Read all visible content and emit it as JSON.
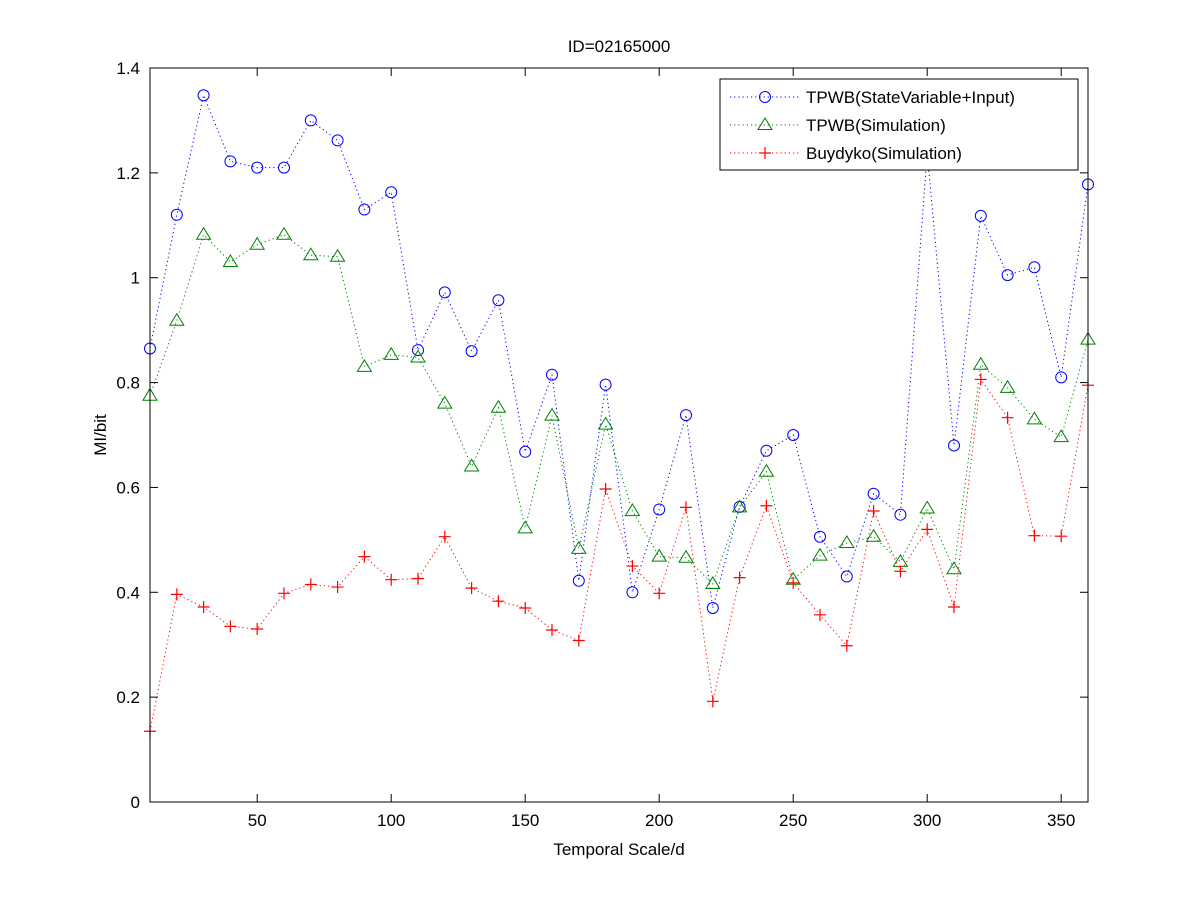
{
  "chart_data": {
    "type": "line",
    "title": "ID=02165000",
    "xlabel": "Temporal Scale/d",
    "ylabel": "MI/bit",
    "xlim": [
      10,
      360
    ],
    "ylim": [
      0,
      1.4
    ],
    "xticks": [
      50,
      100,
      150,
      200,
      250,
      300,
      350
    ],
    "yticks": [
      0,
      0.2,
      0.4,
      0.6,
      0.8,
      1,
      1.2,
      1.4
    ],
    "ytick_labels": [
      "0",
      "0.2",
      "0.4",
      "0.6",
      "0.8",
      "1",
      "1.2",
      "1.4"
    ],
    "grid": false,
    "legend_position": "top-right",
    "x": [
      10,
      20,
      30,
      40,
      50,
      60,
      70,
      80,
      90,
      100,
      110,
      120,
      130,
      140,
      150,
      160,
      170,
      180,
      190,
      200,
      210,
      220,
      230,
      240,
      250,
      260,
      270,
      280,
      290,
      300,
      310,
      320,
      330,
      340,
      350,
      360
    ],
    "series": [
      {
        "name": "TPWB(StateVariable+Input)",
        "color": "#0000ff",
        "marker": "circle",
        "values": [
          0.865,
          1.12,
          1.348,
          1.222,
          1.21,
          1.21,
          1.3,
          1.262,
          1.13,
          1.163,
          0.862,
          0.972,
          0.86,
          0.957,
          0.668,
          0.815,
          0.422,
          0.796,
          0.4,
          0.558,
          0.738,
          0.37,
          0.563,
          0.67,
          0.7,
          0.506,
          0.43,
          0.588,
          0.548,
          1.238,
          0.68,
          1.118,
          1.005,
          1.02,
          0.81,
          1.178
        ]
      },
      {
        "name": "TPWB(Simulation)",
        "color": "#008000",
        "marker": "triangle",
        "values": [
          0.775,
          0.918,
          1.082,
          1.03,
          1.063,
          1.082,
          1.043,
          1.04,
          0.83,
          0.853,
          0.848,
          0.76,
          0.64,
          0.752,
          0.522,
          0.737,
          0.483,
          0.72,
          0.555,
          0.468,
          0.466,
          0.416,
          0.562,
          0.63,
          0.424,
          0.47,
          0.494,
          0.506,
          0.458,
          0.56,
          0.444,
          0.834,
          0.79,
          0.73,
          0.696,
          0.882
        ]
      },
      {
        "name": "Buydyko(Simulation)",
        "color": "#ff0000",
        "marker": "plus",
        "values": [
          0.135,
          0.396,
          0.372,
          0.335,
          0.33,
          0.398,
          0.415,
          0.41,
          0.468,
          0.424,
          0.426,
          0.506,
          0.408,
          0.383,
          0.37,
          0.328,
          0.308,
          0.597,
          0.45,
          0.398,
          0.562,
          0.192,
          0.428,
          0.565,
          0.418,
          0.357,
          0.298,
          0.555,
          0.44,
          0.52,
          0.372,
          0.806,
          0.733,
          0.508,
          0.507,
          0.795
        ]
      }
    ]
  }
}
